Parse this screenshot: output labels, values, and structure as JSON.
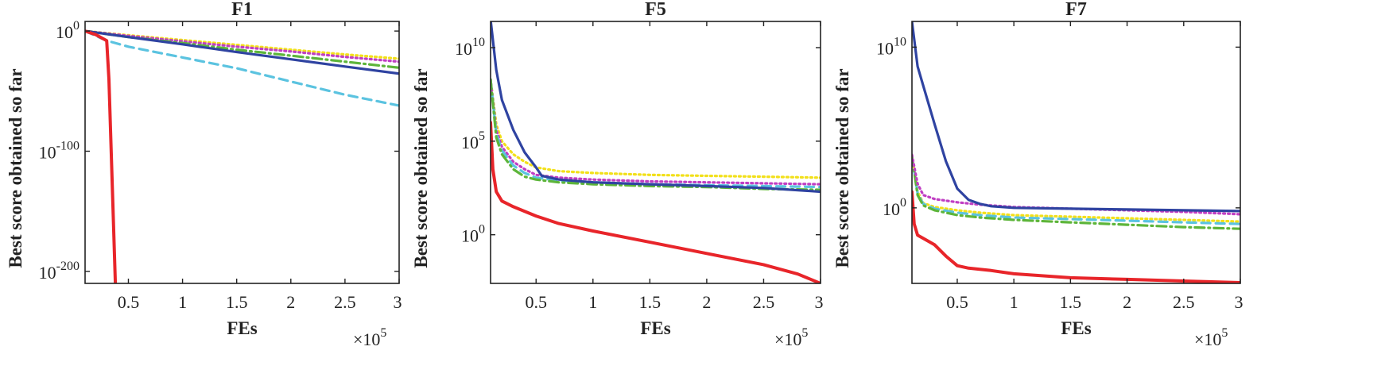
{
  "chart_data": [
    {
      "type": "line",
      "title": "F1",
      "xlabel": "FEs",
      "ylabel": "Best score obtained so far",
      "x_scale": "linear",
      "y_scale": "log",
      "xlim": [
        0.1,
        3
      ],
      "ylim_log10": [
        -210,
        8
      ],
      "x_multiplier": "×10",
      "x_multiplier_exp": "5",
      "x_ticks": [
        0.5,
        1,
        1.5,
        2,
        2.5,
        3
      ],
      "x_tick_labels": [
        "0.5",
        "1",
        "1.5",
        "2",
        "2.5",
        "3"
      ],
      "y_ticks_log10": [
        0,
        -100,
        -200
      ],
      "y_tick_base": "10",
      "y_tick_exps": [
        "0",
        "-100",
        "-200"
      ],
      "series": [
        {
          "name": "yellow-dotted",
          "color": "#f2e01a",
          "dash": "dotted",
          "x": [
            0.1,
            0.5,
            1.0,
            1.5,
            2.0,
            2.5,
            3.0
          ],
          "log10_y": [
            0,
            -3.5,
            -7.5,
            -11.5,
            -15.5,
            -19.5,
            -23
          ]
        },
        {
          "name": "magenta-dotted",
          "color": "#c03ec3",
          "dash": "dotted",
          "x": [
            0.1,
            0.5,
            1.0,
            1.5,
            2.0,
            2.5,
            3.0
          ],
          "log10_y": [
            0,
            -4,
            -8.5,
            -13,
            -17,
            -21.5,
            -25.5
          ]
        },
        {
          "name": "green-dashdot",
          "color": "#5db53a",
          "dash": "dashdot",
          "x": [
            0.1,
            0.5,
            1.0,
            1.5,
            2.0,
            2.5,
            3.0
          ],
          "log10_y": [
            0,
            -5,
            -10,
            -15.5,
            -20.5,
            -25.5,
            -30.5
          ]
        },
        {
          "name": "cyan-dashed",
          "color": "#5bc3e0",
          "dash": "dashed",
          "x": [
            0.1,
            0.3,
            0.5,
            1.0,
            1.5,
            2.0,
            2.5,
            3.0
          ],
          "log10_y": [
            0,
            -8,
            -13,
            -22,
            -31,
            -42,
            -53,
            -62
          ]
        },
        {
          "name": "blue-solid",
          "color": "#2f43a1",
          "dash": "solid",
          "x": [
            0.1,
            0.5,
            1.0,
            1.5,
            2.0,
            2.5,
            3.0
          ],
          "log10_y": [
            0,
            -5,
            -11,
            -17.5,
            -23.5,
            -29.5,
            -35.5
          ]
        },
        {
          "name": "red-solid",
          "color": "#e8252a",
          "dash": "solid",
          "x": [
            0.1,
            0.2,
            0.3,
            0.32,
            0.38
          ],
          "log10_y": [
            0,
            -3,
            -8,
            -40,
            -210
          ]
        }
      ]
    },
    {
      "type": "line",
      "title": "F5",
      "xlabel": "FEs",
      "ylabel": "Best score obtained so far",
      "x_scale": "linear",
      "y_scale": "log",
      "xlim": [
        0.1,
        3
      ],
      "ylim_log10": [
        -2.6,
        11.4
      ],
      "x_multiplier": "×10",
      "x_multiplier_exp": "5",
      "x_ticks": [
        0.5,
        1,
        1.5,
        2,
        2.5,
        3
      ],
      "x_tick_labels": [
        "0.5",
        "1",
        "1.5",
        "2",
        "2.5",
        "3"
      ],
      "y_ticks_log10": [
        10,
        5,
        0
      ],
      "y_tick_base": "10",
      "y_tick_exps": [
        "10",
        "5",
        "0"
      ],
      "series": [
        {
          "name": "yellow-dotted",
          "color": "#f2e01a",
          "dash": "dotted",
          "x": [
            0.1,
            0.15,
            0.2,
            0.3,
            0.4,
            0.5,
            0.7,
            1.0,
            1.5,
            2.0,
            2.5,
            3.0
          ],
          "log10_y": [
            8.3,
            5.9,
            5.0,
            4.3,
            3.9,
            3.6,
            3.4,
            3.3,
            3.2,
            3.15,
            3.1,
            3.05
          ]
        },
        {
          "name": "magenta-dotted",
          "color": "#c03ec3",
          "dash": "dotted",
          "x": [
            0.1,
            0.15,
            0.2,
            0.3,
            0.4,
            0.5,
            0.7,
            1.0,
            1.5,
            2.0,
            2.5,
            3.0
          ],
          "log10_y": [
            8.3,
            5.6,
            4.7,
            3.9,
            3.5,
            3.2,
            3.05,
            2.95,
            2.85,
            2.8,
            2.75,
            2.7
          ]
        },
        {
          "name": "cyan-dashed",
          "color": "#5bc3e0",
          "dash": "dashed",
          "x": [
            0.1,
            0.15,
            0.2,
            0.3,
            0.4,
            0.5,
            0.7,
            1.0,
            1.5,
            2.0,
            2.5,
            3.0
          ],
          "log10_y": [
            8.3,
            5.4,
            4.5,
            3.7,
            3.3,
            3.05,
            2.9,
            2.8,
            2.7,
            2.65,
            2.6,
            2.55
          ]
        },
        {
          "name": "green-dashdot",
          "color": "#5db53a",
          "dash": "dashdot",
          "x": [
            0.1,
            0.15,
            0.2,
            0.3,
            0.4,
            0.5,
            0.7,
            1.0,
            1.5,
            2.0,
            2.5,
            3.0
          ],
          "log10_y": [
            8.3,
            5.2,
            4.3,
            3.5,
            3.1,
            2.95,
            2.8,
            2.7,
            2.6,
            2.55,
            2.45,
            2.4
          ]
        },
        {
          "name": "blue-solid",
          "color": "#2f43a1",
          "dash": "solid",
          "x": [
            0.1,
            0.15,
            0.2,
            0.3,
            0.4,
            0.5,
            0.55,
            0.7,
            1.0,
            1.5,
            2.0,
            2.5,
            3.0
          ],
          "log10_y": [
            11.5,
            8.8,
            7.2,
            5.6,
            4.4,
            3.6,
            3.15,
            2.95,
            2.8,
            2.7,
            2.6,
            2.5,
            2.3
          ]
        },
        {
          "name": "red-solid",
          "color": "#e8252a",
          "dash": "solid",
          "x": [
            0.1,
            0.12,
            0.15,
            0.2,
            0.3,
            0.5,
            0.7,
            1.0,
            1.5,
            2.0,
            2.5,
            2.8,
            3.0
          ],
          "log10_y": [
            6.0,
            3.5,
            2.3,
            1.8,
            1.5,
            1.0,
            0.6,
            0.2,
            -0.4,
            -1.0,
            -1.6,
            -2.1,
            -2.6
          ]
        }
      ]
    },
    {
      "type": "line",
      "title": "F7",
      "xlabel": "FEs",
      "ylabel": "Best score obtained so far",
      "x_scale": "linear",
      "y_scale": "log",
      "xlim": [
        0.1,
        3
      ],
      "ylim_log10": [
        -4.7,
        11.6
      ],
      "x_multiplier": "×10",
      "x_multiplier_exp": "5",
      "x_ticks": [
        0.5,
        1,
        1.5,
        2,
        2.5,
        3
      ],
      "x_tick_labels": [
        "0.5",
        "1",
        "1.5",
        "2",
        "2.5",
        "3"
      ],
      "y_ticks_log10": [
        10,
        0
      ],
      "y_tick_base": "10",
      "y_tick_exps": [
        "10",
        "0"
      ],
      "series": [
        {
          "name": "yellow-dotted",
          "color": "#f2e01a",
          "dash": "dotted",
          "x": [
            0.1,
            0.15,
            0.2,
            0.3,
            0.5,
            0.7,
            1.0,
            1.5,
            2.0,
            2.5,
            3.0
          ],
          "log10_y": [
            3.2,
            1.0,
            0.3,
            0.05,
            -0.15,
            -0.3,
            -0.45,
            -0.55,
            -0.65,
            -0.75,
            -0.85
          ]
        },
        {
          "name": "cyan-dashed",
          "color": "#5bc3e0",
          "dash": "dashed",
          "x": [
            0.1,
            0.15,
            0.2,
            0.3,
            0.5,
            0.7,
            1.0,
            1.5,
            2.0,
            2.5,
            3.0
          ],
          "log10_y": [
            3.2,
            0.9,
            0.25,
            -0.05,
            -0.3,
            -0.45,
            -0.6,
            -0.7,
            -0.8,
            -0.9,
            -1.0
          ]
        },
        {
          "name": "green-dashdot",
          "color": "#5db53a",
          "dash": "dashdot",
          "x": [
            0.1,
            0.15,
            0.2,
            0.3,
            0.5,
            0.7,
            1.0,
            1.5,
            2.0,
            2.5,
            3.0
          ],
          "log10_y": [
            3.2,
            0.8,
            0.15,
            -0.15,
            -0.45,
            -0.6,
            -0.75,
            -0.9,
            -1.05,
            -1.2,
            -1.3
          ]
        },
        {
          "name": "magenta-dotted",
          "color": "#c03ec3",
          "dash": "dotted",
          "x": [
            0.1,
            0.15,
            0.2,
            0.3,
            0.5,
            0.7,
            1.0,
            1.5,
            2.0,
            2.5,
            3.0
          ],
          "log10_y": [
            3.3,
            1.5,
            0.8,
            0.55,
            0.35,
            0.2,
            0.05,
            -0.05,
            -0.15,
            -0.25,
            -0.4
          ]
        },
        {
          "name": "blue-solid",
          "color": "#2f43a1",
          "dash": "solid",
          "x": [
            0.1,
            0.15,
            0.2,
            0.3,
            0.4,
            0.5,
            0.6,
            0.7,
            0.8,
            1.0,
            1.5,
            2.0,
            2.5,
            3.0
          ],
          "log10_y": [
            11.6,
            8.8,
            7.6,
            5.2,
            2.9,
            1.2,
            0.5,
            0.25,
            0.1,
            0.0,
            -0.05,
            -0.1,
            -0.15,
            -0.2
          ]
        },
        {
          "name": "red-solid",
          "color": "#e8252a",
          "dash": "solid",
          "x": [
            0.1,
            0.12,
            0.15,
            0.2,
            0.3,
            0.4,
            0.5,
            0.6,
            0.8,
            1.0,
            1.5,
            2.0,
            2.5,
            3.0
          ],
          "log10_y": [
            1.0,
            -1.0,
            -1.7,
            -1.9,
            -2.3,
            -3.0,
            -3.6,
            -3.75,
            -3.9,
            -4.1,
            -4.35,
            -4.45,
            -4.55,
            -4.65
          ]
        }
      ]
    }
  ]
}
